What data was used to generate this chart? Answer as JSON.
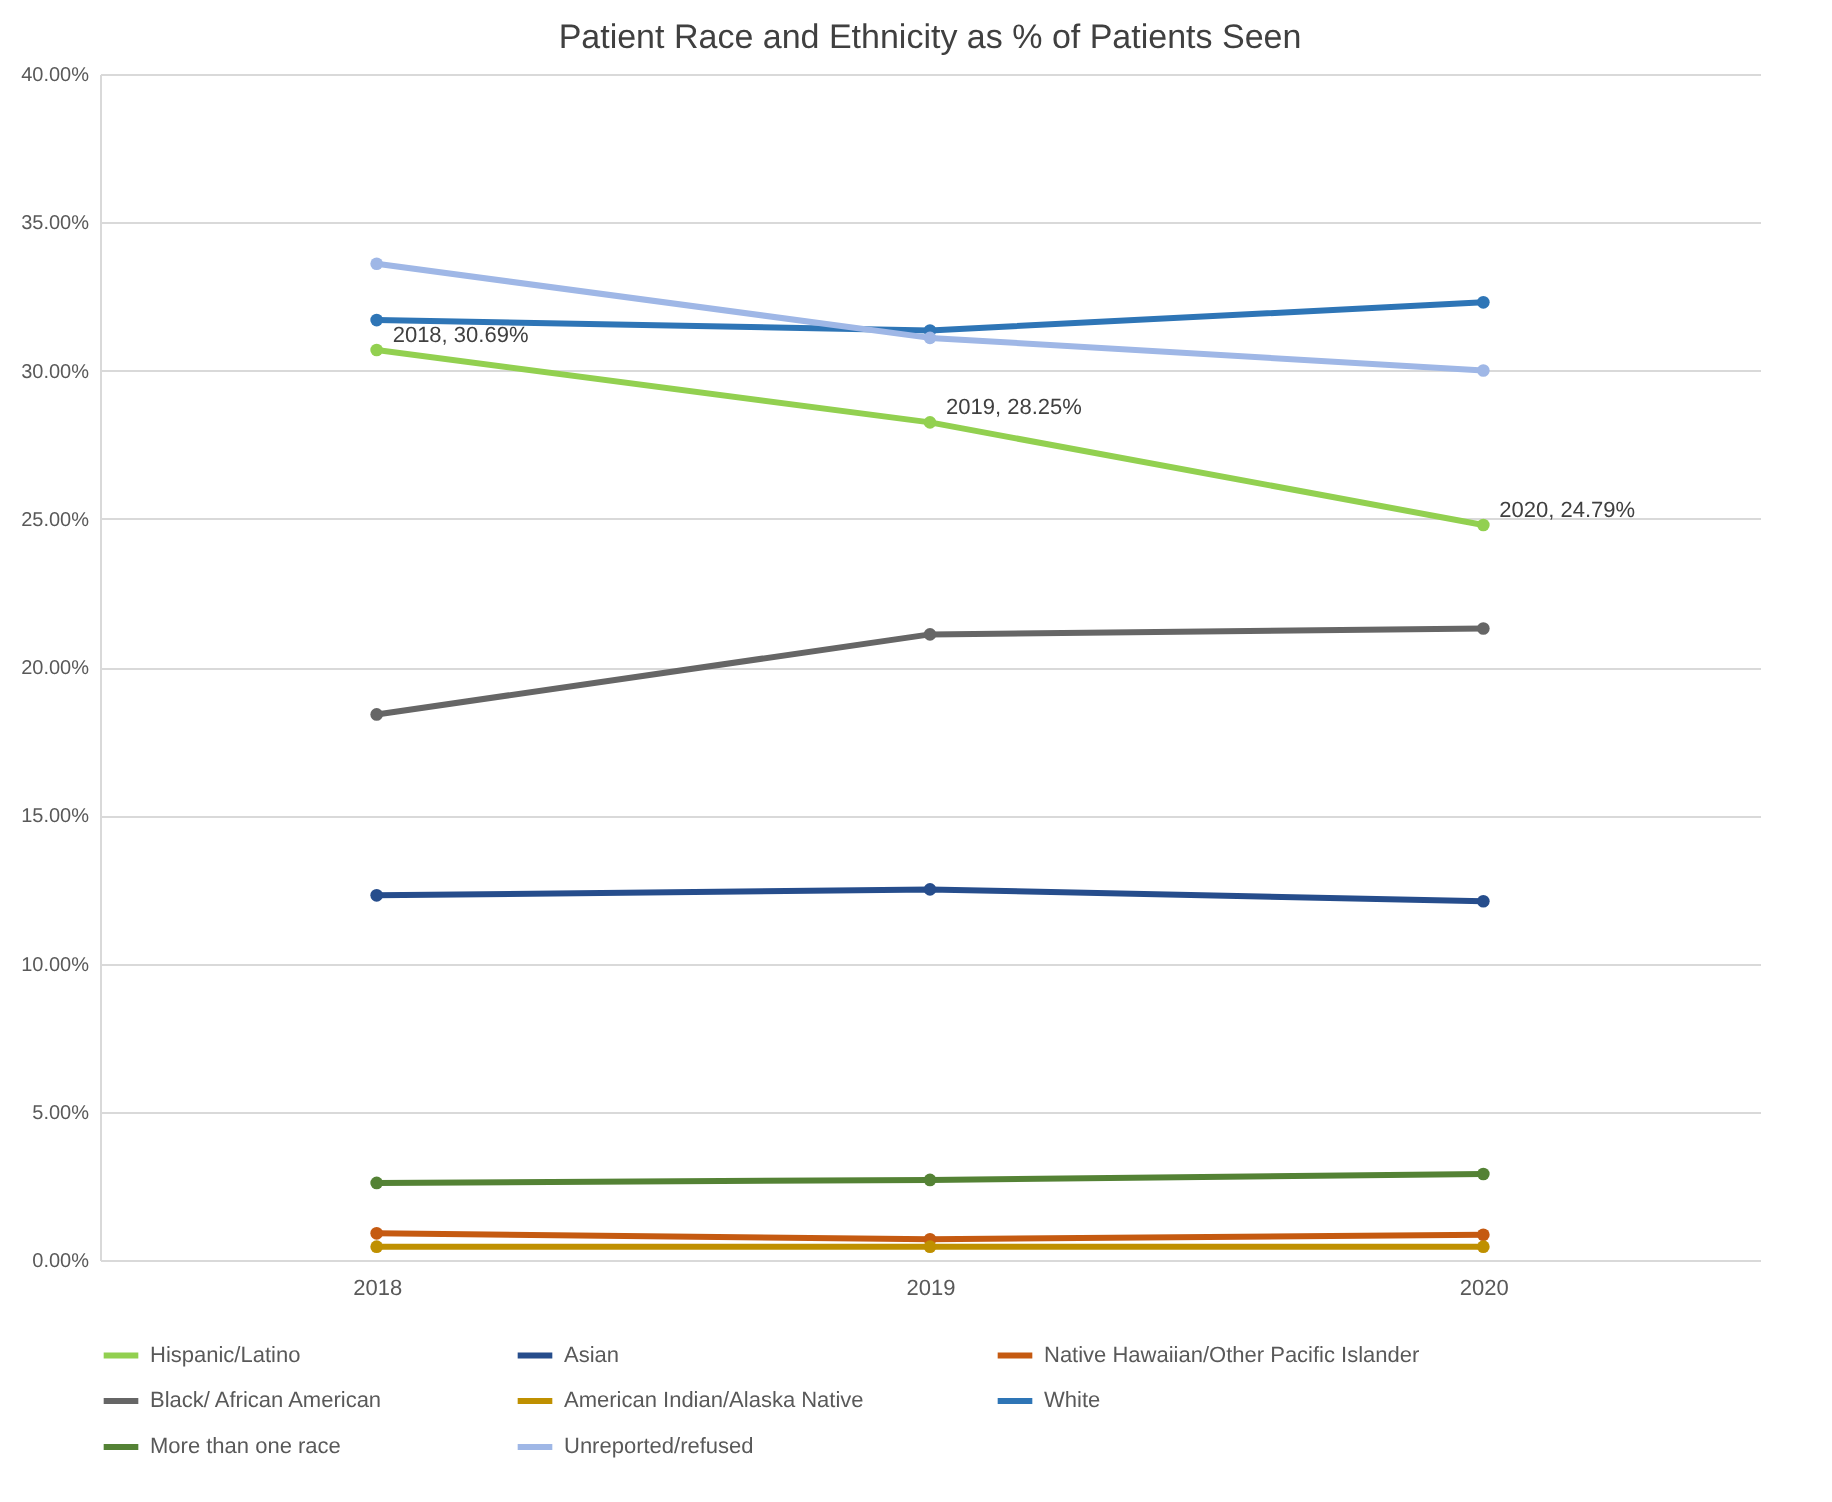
{
  "chart_data": {
    "type": "line",
    "title": "Patient Race and Ethnicity as % of Patients Seen",
    "categories": [
      "2018",
      "2019",
      "2020"
    ],
    "series": [
      {
        "name": "Hispanic/Latino",
        "color": "#92d050",
        "values": [
          30.69,
          28.25,
          24.79
        ],
        "value_labels": [
          "2018, 30.69%",
          "2019, 28.25%",
          "2020, 24.79%"
        ]
      },
      {
        "name": "Asian",
        "color": "#264d8c",
        "values": [
          12.3,
          12.5,
          12.1
        ]
      },
      {
        "name": "Native Hawaiian/Other Pacific Islander",
        "color": "#c55a11",
        "values": [
          0.9,
          0.7,
          0.85
        ]
      },
      {
        "name": "Black/ African American",
        "color": "#666666",
        "values": [
          18.4,
          21.1,
          21.3
        ]
      },
      {
        "name": "American Indian/Alaska Native",
        "color": "#bf9000",
        "values": [
          0.45,
          0.45,
          0.45
        ]
      },
      {
        "name": "White",
        "color": "#2e75b6",
        "values": [
          31.7,
          31.35,
          32.3
        ]
      },
      {
        "name": "More than one race",
        "color": "#548235",
        "values": [
          2.6,
          2.7,
          2.9
        ]
      },
      {
        "name": "Unreported/refused",
        "color": "#9fb7e6",
        "values": [
          33.6,
          31.1,
          30.0
        ]
      }
    ],
    "ylim": [
      0,
      40
    ],
    "yticks": [
      {
        "value": 0,
        "label": "0.00%"
      },
      {
        "value": 5,
        "label": "5.00%"
      },
      {
        "value": 10,
        "label": "10.00%"
      },
      {
        "value": 15,
        "label": "15.00%"
      },
      {
        "value": 20,
        "label": "20.00%"
      },
      {
        "value": 25,
        "label": "25.00%"
      },
      {
        "value": 30,
        "label": "30.00%"
      },
      {
        "value": 35,
        "label": "35.00%"
      },
      {
        "value": 40,
        "label": "40.00%"
      }
    ],
    "grid": "y",
    "legend": "bottom",
    "marker": "circle",
    "line_style": "solid"
  }
}
